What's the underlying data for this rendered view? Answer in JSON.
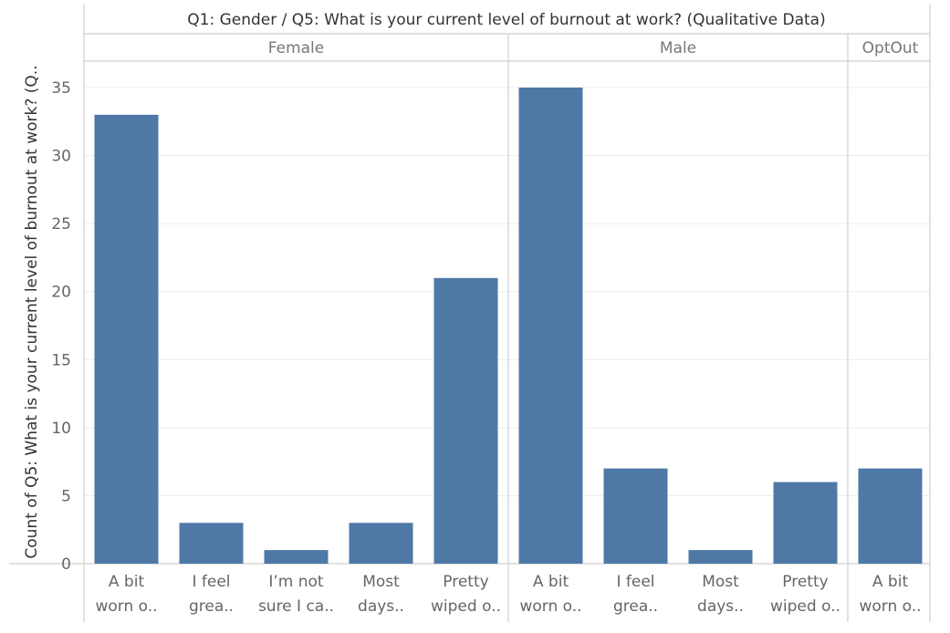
{
  "chart_data": {
    "type": "bar",
    "title": "Q1: Gender  /  Q5: What is your current level of burnout at work? (Qualitative Data)",
    "ylabel": "Count of Q5: What is your current level of burnout at work? (Q..",
    "ylim": [
      0,
      36
    ],
    "yticks": [
      0,
      5,
      10,
      15,
      20,
      25,
      30,
      35
    ],
    "grid": true,
    "bar_color": "#4e79a7",
    "panels": [
      {
        "name": "Female",
        "categories": [
          [
            "A bit",
            "worn o.."
          ],
          [
            "I feel",
            "grea.."
          ],
          [
            "I’m not",
            "sure I ca.."
          ],
          [
            "Most",
            "days.."
          ],
          [
            "Pretty",
            "wiped o.."
          ]
        ],
        "values": [
          33,
          3,
          1,
          3,
          21
        ]
      },
      {
        "name": "Male",
        "categories": [
          [
            "A bit",
            "worn o.."
          ],
          [
            "I feel",
            "grea.."
          ],
          [
            "Most",
            "days.."
          ],
          [
            "Pretty",
            "wiped o.."
          ]
        ],
        "values": [
          35,
          7,
          1,
          6
        ]
      },
      {
        "name": "OptOut",
        "categories": [
          [
            "A bit",
            "worn o.."
          ]
        ],
        "values": [
          7
        ]
      }
    ]
  }
}
